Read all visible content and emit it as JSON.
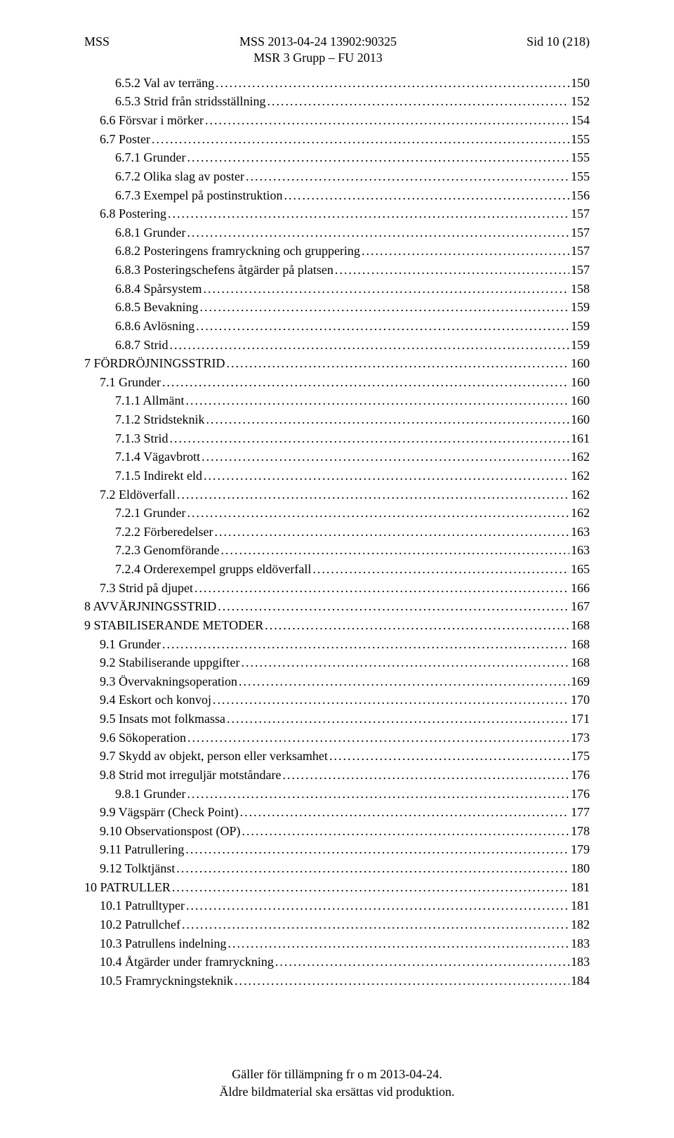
{
  "header": {
    "left": "MSS",
    "center_top": "MSS 2013-04-24 13902:90325",
    "center_bottom": "MSR 3 Grupp – FU 2013",
    "right": "Sid 10 (218)"
  },
  "toc": [
    {
      "indent": 2,
      "label": "6.5.2   Val av terräng",
      "page": "150"
    },
    {
      "indent": 2,
      "label": "6.5.3   Strid från stridsställning",
      "page": "152"
    },
    {
      "indent": 1,
      "label": "6.6   Försvar i mörker",
      "page": "154"
    },
    {
      "indent": 1,
      "label": "6.7   Poster",
      "page": "155"
    },
    {
      "indent": 2,
      "label": "6.7.1   Grunder",
      "page": "155"
    },
    {
      "indent": 2,
      "label": "6.7.2   Olika slag av poster",
      "page": "155"
    },
    {
      "indent": 2,
      "label": "6.7.3   Exempel på postinstruktion",
      "page": "156"
    },
    {
      "indent": 1,
      "label": "6.8   Postering",
      "page": "157"
    },
    {
      "indent": 2,
      "label": "6.8.1   Grunder",
      "page": "157"
    },
    {
      "indent": 2,
      "label": "6.8.2   Posteringens framryckning och gruppering",
      "page": "157"
    },
    {
      "indent": 2,
      "label": "6.8.3   Posteringschefens åtgärder på platsen",
      "page": "157"
    },
    {
      "indent": 2,
      "label": "6.8.4   Spårsystem",
      "page": "158"
    },
    {
      "indent": 2,
      "label": "6.8.5   Bevakning",
      "page": "159"
    },
    {
      "indent": 2,
      "label": "6.8.6   Avlösning",
      "page": "159"
    },
    {
      "indent": 2,
      "label": "6.8.7   Strid",
      "page": "159"
    },
    {
      "indent": 0,
      "label": "7   FÖRDRÖJNINGSSTRID",
      "page": "160"
    },
    {
      "indent": 1,
      "label": "7.1   Grunder",
      "page": "160"
    },
    {
      "indent": 2,
      "label": "7.1.1   Allmänt",
      "page": "160"
    },
    {
      "indent": 2,
      "label": "7.1.2   Stridsteknik",
      "page": "160"
    },
    {
      "indent": 2,
      "label": "7.1.3   Strid",
      "page": "161"
    },
    {
      "indent": 2,
      "label": "7.1.4   Vägavbrott",
      "page": "162"
    },
    {
      "indent": 2,
      "label": "7.1.5   Indirekt eld",
      "page": "162"
    },
    {
      "indent": 1,
      "label": "7.2   Eldöverfall",
      "page": "162"
    },
    {
      "indent": 2,
      "label": "7.2.1   Grunder",
      "page": "162"
    },
    {
      "indent": 2,
      "label": "7.2.2   Förberedelser",
      "page": "163"
    },
    {
      "indent": 2,
      "label": "7.2.3   Genomförande",
      "page": "163"
    },
    {
      "indent": 2,
      "label": "7.2.4   Orderexempel grupps eldöverfall",
      "page": "165"
    },
    {
      "indent": 1,
      "label": "7.3   Strid på djupet",
      "page": "166"
    },
    {
      "indent": 0,
      "label": "8   AVVÄRJNINGSSTRID",
      "page": "167"
    },
    {
      "indent": 0,
      "label": "9   STABILISERANDE METODER",
      "page": "168"
    },
    {
      "indent": 1,
      "label": "9.1   Grunder",
      "page": "168"
    },
    {
      "indent": 1,
      "label": "9.2   Stabiliserande uppgifter",
      "page": "168"
    },
    {
      "indent": 1,
      "label": "9.3   Övervakningsoperation",
      "page": "169"
    },
    {
      "indent": 1,
      "label": "9.4   Eskort och konvoj",
      "page": "170"
    },
    {
      "indent": 1,
      "label": "9.5   Insats mot folkmassa",
      "page": "171"
    },
    {
      "indent": 1,
      "label": "9.6   Sökoperation",
      "page": "173"
    },
    {
      "indent": 1,
      "label": "9.7   Skydd av objekt, person eller verksamhet",
      "page": "175"
    },
    {
      "indent": 1,
      "label": "9.8   Strid mot irreguljär motståndare",
      "page": "176"
    },
    {
      "indent": 2,
      "label": "9.8.1   Grunder",
      "page": "176"
    },
    {
      "indent": 1,
      "label": "9.9   Vägspärr (Check Point)",
      "page": "177"
    },
    {
      "indent": 1,
      "label": "9.10   Observationspost (OP)",
      "page": "178"
    },
    {
      "indent": 1,
      "label": "9.11   Patrullering",
      "page": "179"
    },
    {
      "indent": 1,
      "label": "9.12   Tolktjänst",
      "page": "180"
    },
    {
      "indent": 0,
      "label": "10   PATRULLER",
      "page": "181"
    },
    {
      "indent": 1,
      "label": "10.1   Patrulltyper",
      "page": "181"
    },
    {
      "indent": 1,
      "label": "10.2   Patrullchef",
      "page": "182"
    },
    {
      "indent": 1,
      "label": "10.3   Patrullens indelning",
      "page": "183"
    },
    {
      "indent": 1,
      "label": "10.4   Åtgärder under framryckning",
      "page": "183"
    },
    {
      "indent": 1,
      "label": "10.5   Framryckningsteknik",
      "page": "184"
    }
  ],
  "footer": {
    "line1": "Gäller för tillämpning fr o m 2013-04-24.",
    "line2": "Äldre bildmaterial ska ersättas vid produktion."
  }
}
